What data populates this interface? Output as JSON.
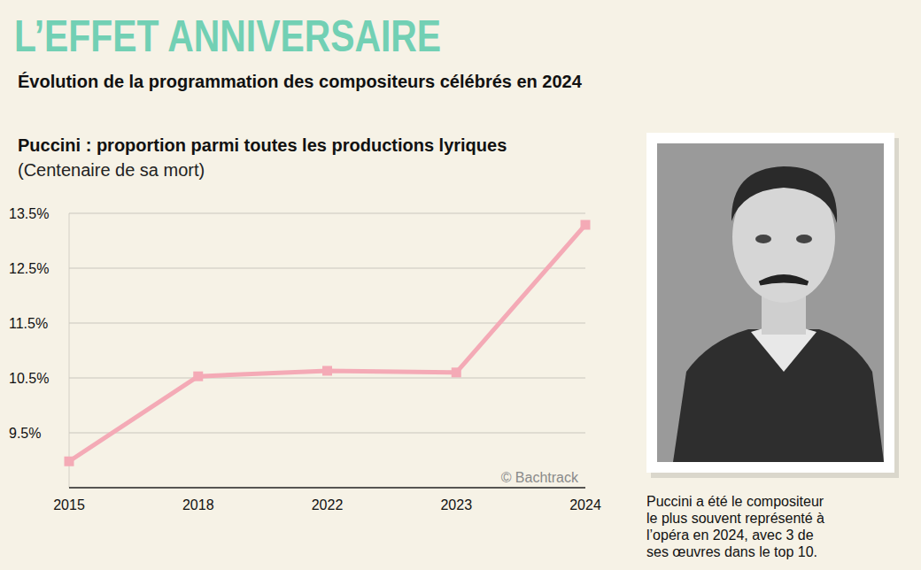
{
  "header": {
    "title": "L’EFFET ANNIVERSAIRE",
    "subtitle": "Évolution de la programmation des compositeurs célébrés en 2024"
  },
  "chart_data": {
    "type": "line",
    "title": "Puccini : proportion parmi toutes les productions lyriques",
    "subtitle": "(Centenaire de sa mort)",
    "categories": [
      "2015",
      "2018",
      "2022",
      "2023",
      "2024"
    ],
    "values": [
      8.98,
      10.53,
      10.63,
      10.6,
      13.29
    ],
    "color": "#f4aab6",
    "marker": "square",
    "ylim": [
      8.5,
      13.5
    ],
    "yticks": [
      {
        "value": 9.5,
        "label": "9.5%"
      },
      {
        "value": 10.5,
        "label": "10.5%"
      },
      {
        "value": 11.5,
        "label": "11.5%"
      },
      {
        "value": 12.5,
        "label": "12.5%"
      },
      {
        "value": 13.5,
        "label": "13.5%"
      }
    ],
    "grid": true,
    "annotations": [
      "© Bachtrack"
    ]
  },
  "caption": {
    "lines": [
      "Puccini a été le compositeur",
      "le plus souvent représenté à",
      "l’opéra en 2024, avec 3 de",
      "ses œuvres dans le top 10."
    ]
  }
}
